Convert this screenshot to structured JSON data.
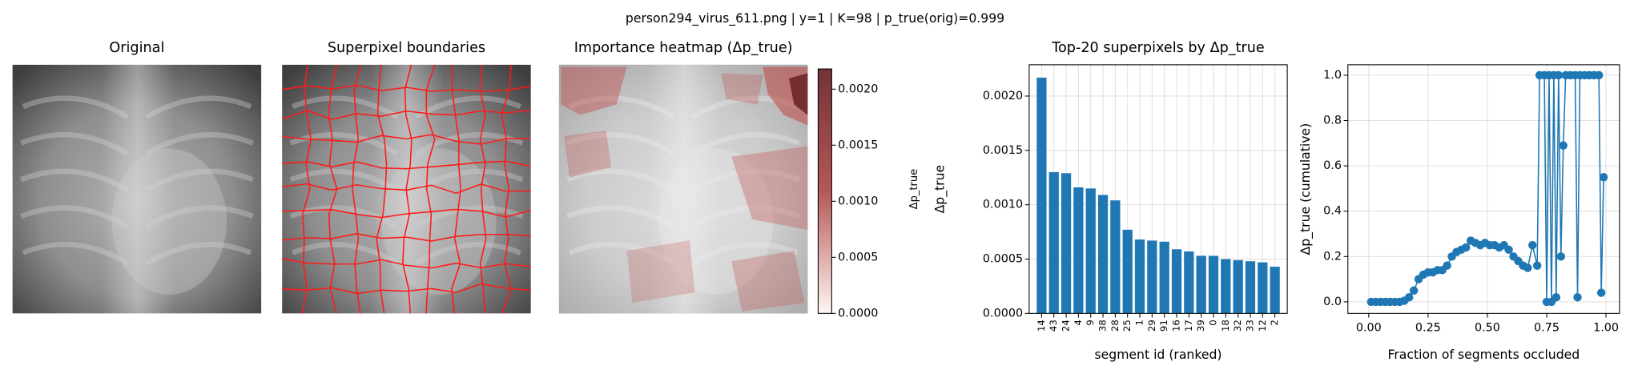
{
  "suptitle": "person294_virus_611.png | y=1 | K=98 | p_true(orig)=0.999",
  "chart_data": [
    {
      "type": "image",
      "title": "Original"
    },
    {
      "type": "image",
      "title": "Superpixel boundaries"
    },
    {
      "type": "image",
      "title": "Importance heatmap (Δp_true)"
    },
    {
      "type": "colorbar",
      "label": "Δp_true",
      "colors": [
        "#fff5f0",
        "#a83a3a",
        "#5a0f14"
      ],
      "ylim": [
        0,
        0.00218
      ],
      "yticks": [
        {
          "value": 0,
          "label": "0.0000"
        },
        {
          "value": 0.0005,
          "label": "0.0005"
        },
        {
          "value": 0.001,
          "label": "0.0010"
        },
        {
          "value": 0.0015,
          "label": "0.0015"
        },
        {
          "value": 0.002,
          "label": "0.0020"
        }
      ]
    },
    {
      "type": "bar",
      "title": "Top-20 superpixels by Δp_true",
      "xlabel": "segment id (ranked)",
      "ylabel": "Δp_true",
      "categories": [
        "14",
        "43",
        "24",
        "4",
        "9",
        "38",
        "28",
        "25",
        "1",
        "29",
        "91",
        "16",
        "17",
        "39",
        "0",
        "18",
        "32",
        "33",
        "12",
        "2"
      ],
      "values": [
        0.00217,
        0.0013,
        0.00129,
        0.00116,
        0.00115,
        0.00109,
        0.00104,
        0.00077,
        0.00068,
        0.00067,
        0.00066,
        0.00059,
        0.00057,
        0.00053,
        0.00053,
        0.0005,
        0.00049,
        0.00048,
        0.00047,
        0.00043
      ],
      "color": "#1f77b4",
      "grid": true,
      "ylim": [
        0,
        0.002288
      ],
      "yticks": [
        {
          "value": 0,
          "label": "0.0000"
        },
        {
          "value": 0.0005,
          "label": "0.0005"
        },
        {
          "value": 0.001,
          "label": "0.0010"
        },
        {
          "value": 0.0015,
          "label": "0.0015"
        },
        {
          "value": 0.002,
          "label": "0.0020"
        }
      ]
    },
    {
      "type": "line",
      "xlabel": "Fraction of segments occluded",
      "ylabel": "Δp_true (cumulative)",
      "grid": true,
      "x": [
        0.01,
        0.03,
        0.05,
        0.07,
        0.09,
        0.11,
        0.13,
        0.15,
        0.17,
        0.19,
        0.21,
        0.23,
        0.25,
        0.27,
        0.29,
        0.31,
        0.33,
        0.35,
        0.37,
        0.39,
        0.41,
        0.43,
        0.45,
        0.47,
        0.49,
        0.51,
        0.53,
        0.55,
        0.57,
        0.59,
        0.61,
        0.63,
        0.65,
        0.67,
        0.69,
        0.71,
        0.72,
        0.74,
        0.75,
        0.76,
        0.77,
        0.78,
        0.79,
        0.8,
        0.81,
        0.82,
        0.83,
        0.85,
        0.87,
        0.88,
        0.89,
        0.91,
        0.93,
        0.95,
        0.97,
        0.98,
        0.99
      ],
      "series": [
        {
          "color": "#1f77b4",
          "values": [
            0,
            0,
            0,
            0,
            0,
            0,
            0,
            0.005,
            0.02,
            0.05,
            0.1,
            0.12,
            0.13,
            0.13,
            0.14,
            0.14,
            0.16,
            0.2,
            0.22,
            0.23,
            0.24,
            0.27,
            0.26,
            0.25,
            0.26,
            0.25,
            0.25,
            0.24,
            0.25,
            0.23,
            0.2,
            0.18,
            0.16,
            0.15,
            0.25,
            0.16,
            1,
            1,
            0,
            1,
            0,
            1,
            0.02,
            1,
            0.2,
            0.69,
            1,
            1,
            1,
            0.02,
            1,
            1,
            1,
            1,
            1,
            0.04,
            0.55
          ]
        }
      ],
      "xlim": [
        -0.088,
        1.057
      ],
      "ylim": [
        -0.051,
        1.046
      ],
      "xticks": [
        {
          "value": 0,
          "label": "0.00"
        },
        {
          "value": 0.25,
          "label": "0.25"
        },
        {
          "value": 0.5,
          "label": "0.50"
        },
        {
          "value": 0.75,
          "label": "0.75"
        },
        {
          "value": 1,
          "label": "1.00"
        }
      ],
      "yticks": [
        {
          "value": 0,
          "label": "0.0"
        },
        0.2,
        0.4,
        0.6,
        0.8,
        {
          "value": 1,
          "label": "1.0"
        }
      ]
    }
  ]
}
